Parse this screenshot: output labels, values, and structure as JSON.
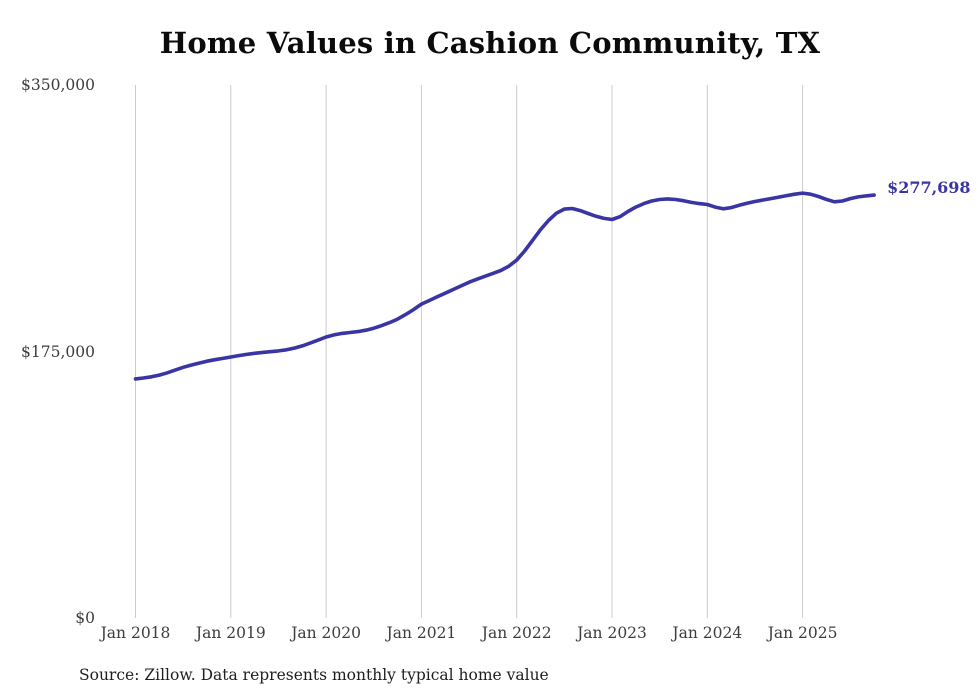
{
  "colors": {
    "line": "#3A35A5",
    "gridline": "#cccccc",
    "tick_text": "#3d3d3d"
  },
  "chart_data": {
    "type": "line",
    "title": "Home Values in Cashion Community, TX",
    "xlabel": "",
    "ylabel": "",
    "ylim": [
      0,
      350000
    ],
    "grid": "vertical-only",
    "legend": "none",
    "line_color": "#3A35A5",
    "gridline_color": "#cccccc",
    "x_tick_labels": [
      "Jan 2018",
      "Jan 2019",
      "Jan 2020",
      "Jan 2021",
      "Jan 2022",
      "Jan 2023",
      "Jan 2024",
      "Jan 2025"
    ],
    "y_ticks": [
      {
        "label": "$0",
        "value": 0
      },
      {
        "label": "$175,000",
        "value": 175000
      },
      {
        "label": "$350,000",
        "value": 350000
      }
    ],
    "x_start": "Jan 2018",
    "x_end": "Oct 2025",
    "x_interval": "monthly",
    "series": [
      {
        "name": "Typical home value",
        "color": "#3A35A5",
        "values": [
          157000,
          157600,
          158400,
          159500,
          161000,
          162800,
          164600,
          166100,
          167400,
          168600,
          169600,
          170500,
          171400,
          172300,
          173100,
          173800,
          174400,
          174900,
          175400,
          176100,
          177200,
          178700,
          180500,
          182500,
          184500,
          185900,
          186900,
          187500,
          188100,
          189000,
          190300,
          192000,
          194000,
          196300,
          199200,
          202500,
          206100,
          208500,
          210900,
          213300,
          215700,
          218100,
          220500,
          222500,
          224400,
          226300,
          228200,
          231000,
          235000,
          241000,
          248000,
          255000,
          261000,
          265800,
          268500,
          268900,
          267500,
          265600,
          263800,
          262400,
          261700,
          263500,
          266900,
          269800,
          272100,
          273800,
          274800,
          275200,
          274800,
          274000,
          272900,
          272100,
          271500,
          269800,
          268700,
          269500,
          271000,
          272300,
          273500,
          274500,
          275400,
          276400,
          277400,
          278300,
          279000,
          278300,
          276800,
          274900,
          273300,
          273800,
          275400,
          276500,
          277200,
          277698
        ]
      }
    ],
    "end_label": "$277,698",
    "final_value": 277698,
    "source_note": "Source: Zillow. Data represents monthly typical home value"
  }
}
